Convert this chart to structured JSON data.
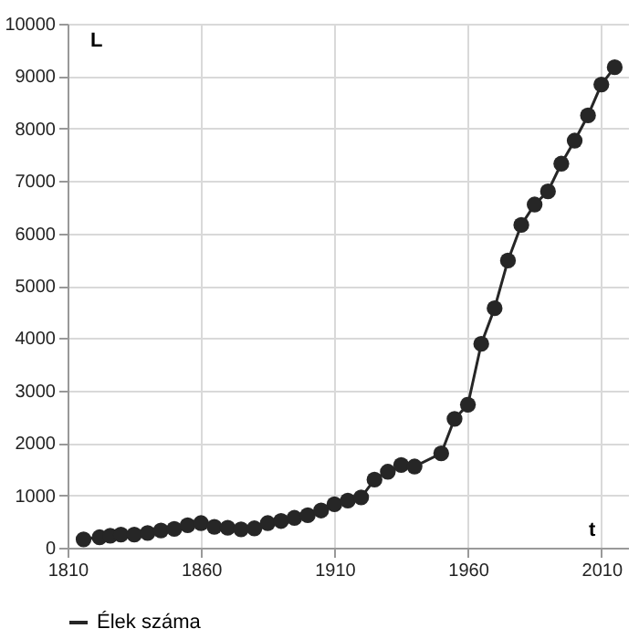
{
  "chart_data": {
    "type": "line",
    "xlabel": "t",
    "ylabel": "L",
    "x": [
      1816,
      1822,
      1826,
      1830,
      1835,
      1840,
      1845,
      1850,
      1855,
      1860,
      1865,
      1870,
      1875,
      1880,
      1885,
      1890,
      1895,
      1900,
      1905,
      1910,
      1915,
      1920,
      1925,
      1930,
      1935,
      1940,
      1950,
      1955,
      1960,
      1965,
      1970,
      1975,
      1980,
      1985,
      1990,
      1995,
      2000,
      2005,
      2010,
      2015
    ],
    "series": [
      {
        "name": "Élek száma",
        "color": "#262626",
        "values": [
          160,
          200,
          230,
          250,
          250,
          280,
          330,
          360,
          430,
          470,
          400,
          380,
          350,
          370,
          470,
          510,
          570,
          620,
          710,
          830,
          900,
          960,
          1300,
          1450,
          1580,
          1550,
          1800,
          2460,
          2730,
          3890,
          4570,
          5480,
          6160,
          6550,
          6800,
          7330,
          7770,
          8250,
          8840,
          9170
        ]
      }
    ],
    "xlim": [
      1810,
      2020
    ],
    "xticks": [
      1810,
      1860,
      1910,
      1960,
      2010
    ],
    "ylim": [
      0,
      10000
    ],
    "yticks": [
      0,
      1000,
      2000,
      3000,
      4000,
      5000,
      6000,
      7000,
      8000,
      9000,
      10000
    ],
    "grid": true,
    "legend": "bottom",
    "marker": "circle",
    "line_style": "solid"
  }
}
